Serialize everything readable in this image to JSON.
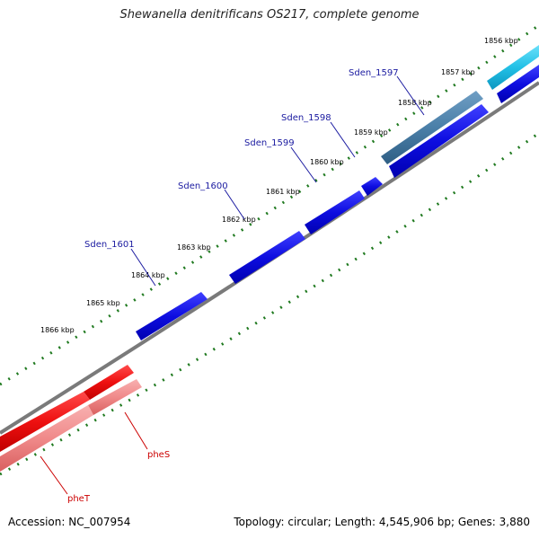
{
  "title": "Shewanella denitrificans OS217, complete genome",
  "accession": "Accession: NC_007954",
  "topology": "Topology: circular; Length: 4,545,906 bp; Genes: 3,880",
  "ticks": [
    "1856 kbp",
    "1857 kbp",
    "1858 kbp",
    "1859 kbp",
    "1860 kbp",
    "1861 kbp",
    "1862 kbp",
    "1863 kbp",
    "1864 kbp",
    "1865 kbp",
    "1866 kbp"
  ],
  "genes_forward": [
    "Sden_1597",
    "Sden_1598",
    "Sden_1599",
    "Sden_1600",
    "Sden_1601"
  ],
  "genes_reverse": [
    "pheS",
    "pheT"
  ],
  "colors": {
    "backbone": "#808080",
    "forward_cds": "#1010e0",
    "reverse_cds": "#ee1111",
    "reverse_feature": "#f08a8a",
    "forward_feature_steel": "#4a7fa8",
    "forward_feature_cyan": "#22c0e6",
    "tick": "#207a20",
    "forward_label": "#1a1aa0",
    "reverse_label": "#cc0000"
  }
}
